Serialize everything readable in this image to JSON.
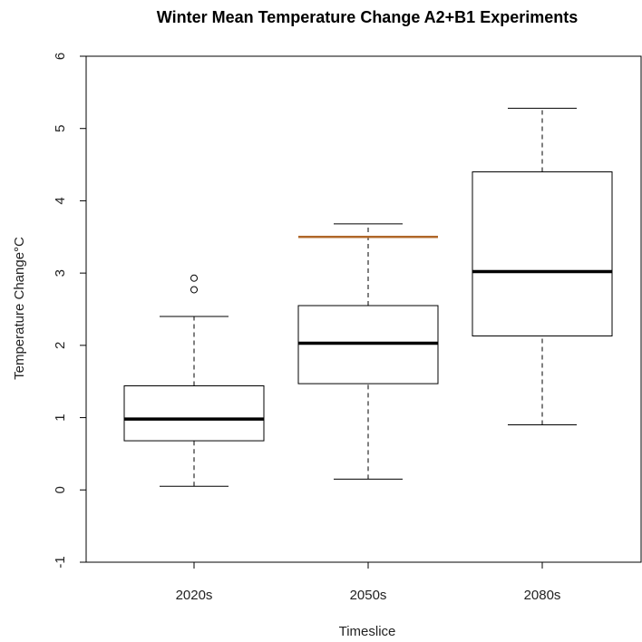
{
  "chart_data": {
    "type": "box",
    "title": "Winter Mean Temperature Change A2+B1 Experiments",
    "x_label": "Timeslice",
    "y_label": "Temperature Change°C",
    "categories": [
      "2020s",
      "2050s",
      "2080s"
    ],
    "boxes": [
      {
        "whislo": 0.05,
        "q1": 0.68,
        "med": 0.98,
        "q3": 1.44,
        "whishi": 2.4,
        "outliers": [
          2.77,
          2.93
        ]
      },
      {
        "whislo": 0.15,
        "q1": 1.47,
        "med": 2.03,
        "q3": 2.55,
        "whishi": 3.68,
        "outliers": [],
        "marker_line": 3.5
      },
      {
        "whislo": 0.9,
        "q1": 2.13,
        "med": 3.02,
        "q3": 4.4,
        "whishi": 5.28,
        "outliers": []
      }
    ],
    "marker_color": "#b0682a",
    "ylim": [
      -1,
      6
    ],
    "yticks": [
      -1,
      0,
      1,
      2,
      3,
      4,
      5,
      6
    ]
  }
}
